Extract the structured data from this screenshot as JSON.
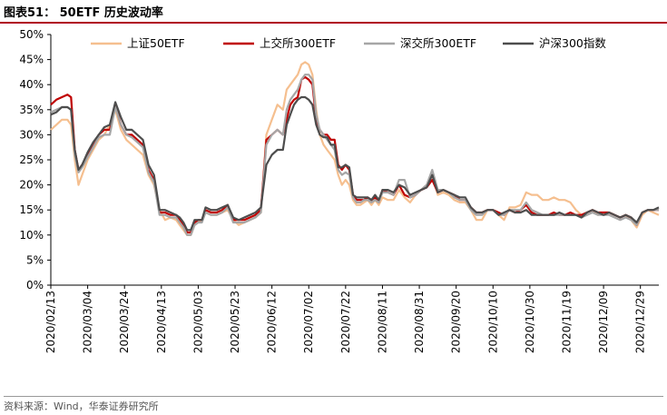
{
  "figure": {
    "title": "图表51：  50ETF 历史波动率",
    "source": "资料来源：Wind，华泰证券研究所"
  },
  "chart_data": {
    "type": "line",
    "ylim": [
      0,
      0.5
    ],
    "yticks": [
      "0%",
      "5%",
      "10%",
      "15%",
      "20%",
      "25%",
      "30%",
      "35%",
      "40%",
      "45%",
      "50%"
    ],
    "xticks": [
      "2020/02/13",
      "2020/03/04",
      "2020/03/24",
      "2020/04/13",
      "2020/05/03",
      "2020/05/23",
      "2020/06/12",
      "2020/07/02",
      "2020/07/22",
      "2020/08/11",
      "2020/08/31",
      "2020/09/20",
      "2020/10/10",
      "2020/10/30",
      "2020/11/19",
      "2020/12/09",
      "2020/12/29"
    ],
    "xlim_days": [
      0,
      330
    ],
    "legend_position": "top",
    "grid": false,
    "series": [
      {
        "name": "上证50ETF",
        "color": "#f5bf8f",
        "x": [
          0,
          3,
          6,
          9,
          11,
          13,
          15,
          17,
          20,
          23,
          26,
          29,
          32,
          35,
          38,
          41,
          44,
          47,
          50,
          53,
          56,
          59,
          62,
          65,
          68,
          70,
          72,
          74,
          76,
          78,
          80,
          82,
          84,
          87,
          90,
          93,
          96,
          99,
          102,
          105,
          108,
          111,
          114,
          117,
          120,
          123,
          126,
          128,
          130,
          132,
          134,
          136,
          138,
          140,
          142,
          144,
          146,
          148,
          150,
          152,
          154,
          156,
          158,
          160,
          162,
          164,
          166,
          168,
          170,
          172,
          174,
          176,
          178,
          180,
          183,
          186,
          189,
          192,
          195,
          198,
          201,
          204,
          207,
          210,
          213,
          216,
          219,
          222,
          225,
          228,
          231,
          234,
          237,
          240,
          243,
          246,
          249,
          252,
          255,
          258,
          261,
          264,
          267,
          270,
          273,
          276,
          279,
          282,
          285,
          288,
          291,
          294,
          297,
          300,
          303,
          306,
          309,
          312,
          315,
          318,
          321,
          324,
          327,
          330
        ],
        "y": [
          0.31,
          0.32,
          0.33,
          0.33,
          0.32,
          0.25,
          0.2,
          0.22,
          0.25,
          0.27,
          0.29,
          0.3,
          0.32,
          0.35,
          0.31,
          0.29,
          0.28,
          0.27,
          0.26,
          0.22,
          0.2,
          0.15,
          0.13,
          0.135,
          0.13,
          0.12,
          0.11,
          0.1,
          0.1,
          0.12,
          0.125,
          0.13,
          0.145,
          0.14,
          0.14,
          0.145,
          0.15,
          0.13,
          0.12,
          0.125,
          0.13,
          0.135,
          0.145,
          0.3,
          0.33,
          0.36,
          0.35,
          0.39,
          0.4,
          0.41,
          0.42,
          0.44,
          0.445,
          0.44,
          0.42,
          0.35,
          0.3,
          0.28,
          0.27,
          0.26,
          0.25,
          0.22,
          0.2,
          0.21,
          0.2,
          0.17,
          0.16,
          0.16,
          0.165,
          0.17,
          0.16,
          0.17,
          0.16,
          0.175,
          0.17,
          0.17,
          0.19,
          0.175,
          0.165,
          0.18,
          0.19,
          0.2,
          0.22,
          0.18,
          0.185,
          0.18,
          0.17,
          0.165,
          0.165,
          0.15,
          0.13,
          0.13,
          0.15,
          0.15,
          0.14,
          0.13,
          0.155,
          0.155,
          0.16,
          0.185,
          0.18,
          0.18,
          0.17,
          0.17,
          0.175,
          0.17,
          0.17,
          0.165,
          0.15,
          0.14,
          0.145,
          0.15,
          0.14,
          0.145,
          0.145,
          0.14,
          0.135,
          0.14,
          0.13,
          0.115,
          0.14,
          0.15,
          0.145,
          0.14
        ]
      },
      {
        "name": "上交所300ETF",
        "color": "#c00000",
        "x": [
          0,
          3,
          6,
          9,
          11,
          13,
          15,
          17,
          20,
          23,
          26,
          29,
          32,
          35,
          38,
          41,
          44,
          47,
          50,
          53,
          56,
          59,
          62,
          65,
          68,
          70,
          72,
          74,
          76,
          78,
          80,
          82,
          84,
          87,
          90,
          93,
          96,
          99,
          102,
          105,
          108,
          111,
          114,
          117,
          120,
          123,
          126,
          128,
          130,
          132,
          134,
          136,
          138,
          140,
          142,
          144,
          146,
          148,
          150,
          152,
          154,
          156,
          158,
          160,
          162,
          164,
          166,
          168,
          170,
          172,
          174,
          176,
          178,
          180,
          183,
          186,
          189,
          192,
          195,
          198,
          201,
          204,
          207,
          210,
          213,
          216,
          219,
          222,
          225,
          228,
          231,
          234,
          237,
          240,
          243,
          246,
          249,
          252,
          255,
          258,
          261,
          264,
          267,
          270,
          273,
          276,
          279,
          282,
          285,
          288,
          291,
          294,
          297,
          300,
          303,
          306,
          309,
          312,
          315,
          318,
          321,
          324,
          327,
          330
        ],
        "y": [
          0.36,
          0.37,
          0.375,
          0.38,
          0.375,
          0.27,
          0.23,
          0.24,
          0.26,
          0.28,
          0.3,
          0.31,
          0.31,
          0.36,
          0.32,
          0.3,
          0.3,
          0.29,
          0.28,
          0.23,
          0.21,
          0.145,
          0.145,
          0.14,
          0.14,
          0.13,
          0.12,
          0.105,
          0.105,
          0.125,
          0.13,
          0.13,
          0.15,
          0.145,
          0.145,
          0.15,
          0.16,
          0.13,
          0.13,
          0.13,
          0.135,
          0.14,
          0.15,
          0.29,
          0.3,
          0.31,
          0.3,
          0.33,
          0.36,
          0.37,
          0.375,
          0.41,
          0.415,
          0.41,
          0.4,
          0.33,
          0.31,
          0.3,
          0.3,
          0.29,
          0.29,
          0.24,
          0.23,
          0.24,
          0.23,
          0.18,
          0.17,
          0.17,
          0.17,
          0.175,
          0.17,
          0.175,
          0.165,
          0.19,
          0.185,
          0.18,
          0.2,
          0.18,
          0.175,
          0.18,
          0.19,
          0.195,
          0.21,
          0.185,
          0.19,
          0.185,
          0.18,
          0.17,
          0.17,
          0.155,
          0.145,
          0.145,
          0.15,
          0.15,
          0.145,
          0.14,
          0.15,
          0.145,
          0.15,
          0.16,
          0.145,
          0.14,
          0.14,
          0.14,
          0.145,
          0.14,
          0.14,
          0.145,
          0.14,
          0.14,
          0.145,
          0.15,
          0.145,
          0.145,
          0.145,
          0.14,
          0.135,
          0.14,
          0.135,
          0.12,
          0.145,
          0.15,
          0.15,
          0.15
        ]
      },
      {
        "name": "深交所300ETF",
        "color": "#a6a6a6",
        "x": [
          0,
          3,
          6,
          9,
          11,
          13,
          15,
          17,
          20,
          23,
          26,
          29,
          32,
          35,
          38,
          41,
          44,
          47,
          50,
          53,
          56,
          59,
          62,
          65,
          68,
          70,
          72,
          74,
          76,
          78,
          80,
          82,
          84,
          87,
          90,
          93,
          96,
          99,
          102,
          105,
          108,
          111,
          114,
          117,
          120,
          123,
          126,
          128,
          130,
          132,
          134,
          136,
          138,
          140,
          142,
          144,
          146,
          148,
          150,
          152,
          154,
          156,
          158,
          160,
          162,
          164,
          166,
          168,
          170,
          172,
          174,
          176,
          178,
          180,
          183,
          186,
          189,
          192,
          195,
          198,
          201,
          204,
          207,
          210,
          213,
          216,
          219,
          222,
          225,
          228,
          231,
          234,
          237,
          240,
          243,
          246,
          249,
          252,
          255,
          258,
          261,
          264,
          267,
          270,
          273,
          276,
          279,
          282,
          285,
          288,
          291,
          294,
          297,
          300,
          303,
          306,
          309,
          312,
          315,
          318,
          321,
          324,
          327,
          330
        ],
        "y": [
          0.345,
          0.35,
          0.355,
          0.355,
          0.35,
          0.26,
          0.225,
          0.235,
          0.255,
          0.275,
          0.295,
          0.3,
          0.3,
          0.355,
          0.32,
          0.3,
          0.295,
          0.285,
          0.275,
          0.225,
          0.205,
          0.14,
          0.14,
          0.135,
          0.135,
          0.125,
          0.115,
          0.1,
          0.1,
          0.12,
          0.125,
          0.125,
          0.145,
          0.14,
          0.14,
          0.145,
          0.155,
          0.125,
          0.125,
          0.125,
          0.13,
          0.135,
          0.145,
          0.28,
          0.3,
          0.31,
          0.3,
          0.35,
          0.37,
          0.38,
          0.39,
          0.41,
          0.42,
          0.42,
          0.41,
          0.34,
          0.31,
          0.3,
          0.29,
          0.28,
          0.27,
          0.23,
          0.22,
          0.225,
          0.22,
          0.175,
          0.165,
          0.165,
          0.17,
          0.17,
          0.165,
          0.17,
          0.165,
          0.185,
          0.185,
          0.18,
          0.21,
          0.21,
          0.175,
          0.18,
          0.19,
          0.2,
          0.23,
          0.19,
          0.19,
          0.185,
          0.175,
          0.17,
          0.17,
          0.15,
          0.14,
          0.14,
          0.15,
          0.15,
          0.14,
          0.14,
          0.15,
          0.15,
          0.15,
          0.165,
          0.15,
          0.145,
          0.14,
          0.14,
          0.14,
          0.14,
          0.14,
          0.14,
          0.14,
          0.135,
          0.14,
          0.145,
          0.14,
          0.14,
          0.14,
          0.135,
          0.13,
          0.135,
          0.13,
          0.12,
          0.145,
          0.15,
          0.15,
          0.15
        ]
      },
      {
        "name": "沪深300指数",
        "color": "#4d4d4d",
        "x": [
          0,
          3,
          6,
          9,
          11,
          13,
          15,
          17,
          20,
          23,
          26,
          29,
          32,
          35,
          38,
          41,
          44,
          47,
          50,
          53,
          56,
          59,
          62,
          65,
          68,
          70,
          72,
          74,
          76,
          78,
          80,
          82,
          84,
          87,
          90,
          93,
          96,
          99,
          102,
          105,
          108,
          111,
          114,
          117,
          120,
          123,
          126,
          128,
          130,
          132,
          134,
          136,
          138,
          140,
          142,
          144,
          146,
          148,
          150,
          152,
          154,
          156,
          158,
          160,
          162,
          164,
          166,
          168,
          170,
          172,
          174,
          176,
          178,
          180,
          183,
          186,
          189,
          192,
          195,
          198,
          201,
          204,
          207,
          210,
          213,
          216,
          219,
          222,
          225,
          228,
          231,
          234,
          237,
          240,
          243,
          246,
          249,
          252,
          255,
          258,
          261,
          264,
          267,
          270,
          273,
          276,
          279,
          282,
          285,
          288,
          291,
          294,
          297,
          300,
          303,
          306,
          309,
          312,
          315,
          318,
          321,
          324,
          327,
          330
        ],
        "y": [
          0.34,
          0.345,
          0.355,
          0.355,
          0.35,
          0.27,
          0.23,
          0.24,
          0.265,
          0.285,
          0.3,
          0.315,
          0.32,
          0.365,
          0.335,
          0.31,
          0.31,
          0.3,
          0.29,
          0.24,
          0.22,
          0.15,
          0.15,
          0.145,
          0.14,
          0.135,
          0.125,
          0.11,
          0.11,
          0.13,
          0.13,
          0.13,
          0.155,
          0.15,
          0.15,
          0.155,
          0.16,
          0.135,
          0.13,
          0.135,
          0.14,
          0.145,
          0.155,
          0.24,
          0.26,
          0.27,
          0.27,
          0.32,
          0.34,
          0.36,
          0.37,
          0.375,
          0.375,
          0.37,
          0.36,
          0.32,
          0.3,
          0.295,
          0.295,
          0.28,
          0.28,
          0.235,
          0.235,
          0.24,
          0.235,
          0.18,
          0.175,
          0.175,
          0.175,
          0.175,
          0.17,
          0.18,
          0.17,
          0.19,
          0.19,
          0.185,
          0.2,
          0.195,
          0.18,
          0.185,
          0.19,
          0.195,
          0.22,
          0.185,
          0.19,
          0.185,
          0.18,
          0.175,
          0.175,
          0.155,
          0.145,
          0.145,
          0.15,
          0.15,
          0.14,
          0.145,
          0.15,
          0.145,
          0.145,
          0.15,
          0.14,
          0.14,
          0.14,
          0.14,
          0.14,
          0.145,
          0.14,
          0.14,
          0.14,
          0.135,
          0.145,
          0.15,
          0.145,
          0.14,
          0.145,
          0.14,
          0.135,
          0.14,
          0.135,
          0.125,
          0.145,
          0.15,
          0.15,
          0.155
        ]
      }
    ]
  }
}
